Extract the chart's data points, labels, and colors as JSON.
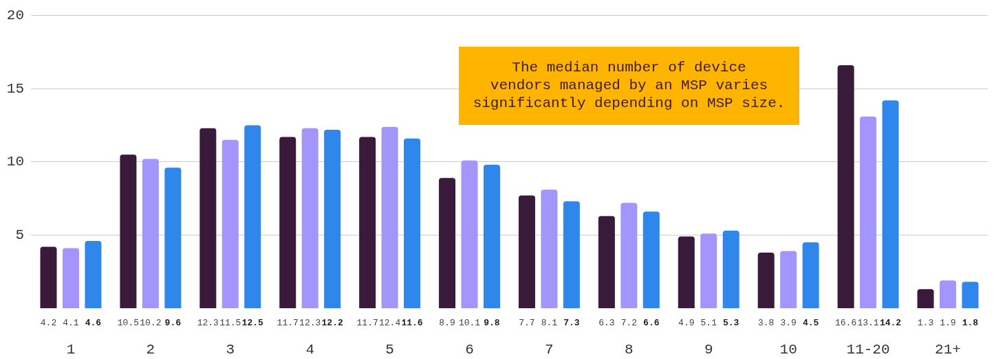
{
  "chart_data": {
    "type": "bar",
    "categories": [
      "1",
      "2",
      "3",
      "4",
      "5",
      "6",
      "7",
      "8",
      "9",
      "10",
      "11-20",
      "21+"
    ],
    "series": [
      {
        "color": "#3a1a3b",
        "values": [
          4.2,
          10.5,
          12.3,
          11.7,
          11.7,
          8.9,
          7.7,
          6.3,
          4.9,
          3.8,
          16.6,
          1.3
        ]
      },
      {
        "color": "#a395fb",
        "values": [
          4.1,
          10.2,
          11.5,
          12.3,
          12.4,
          10.1,
          8.1,
          7.2,
          5.1,
          3.9,
          13.1,
          1.9
        ]
      },
      {
        "color": "#2f86eb",
        "values": [
          4.6,
          9.6,
          12.5,
          12.2,
          11.6,
          9.8,
          7.3,
          6.6,
          5.3,
          4.5,
          14.2,
          1.8
        ]
      }
    ],
    "ylim": [
      0,
      20
    ],
    "yticks": [
      5,
      10,
      15,
      20
    ],
    "grid": "y",
    "data_labels": true,
    "annotations": [
      "The median number of device vendors managed by an MSP varies significantly depending on MSP size."
    ]
  }
}
